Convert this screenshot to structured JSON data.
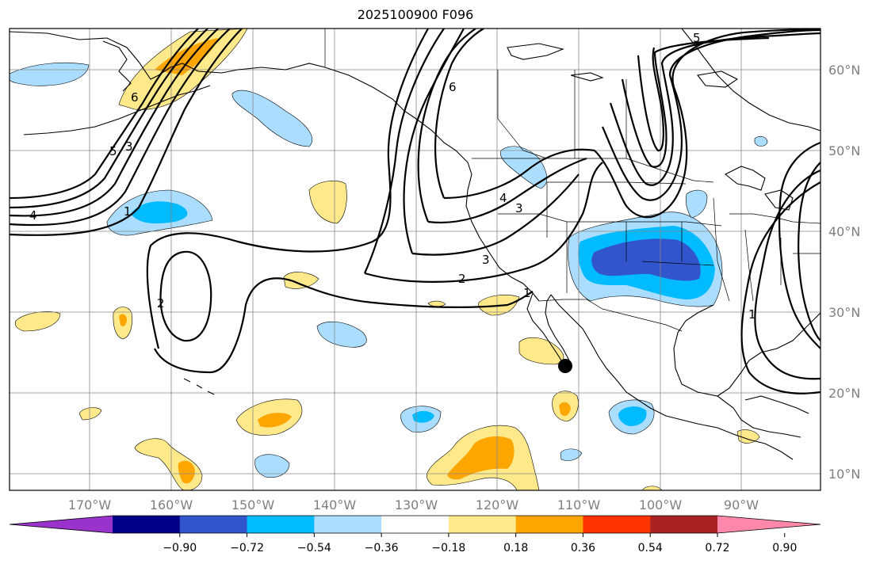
{
  "title": "2025100900 F096",
  "lat_labels": [
    "60°N",
    "50°N",
    "40°N",
    "30°N",
    "20°N",
    "10°N"
  ],
  "lon_labels": [
    "170°W",
    "160°W",
    "150°W",
    "140°W",
    "130°W",
    "120°W",
    "110°W",
    "100°W",
    "90°W"
  ],
  "colorbar": {
    "colors": [
      "#9933cc",
      "#000088",
      "#3355cc",
      "#00bbff",
      "#aaddff",
      "#ffffff",
      "#ffe98a",
      "#ffa500",
      "#ff3300",
      "#aa2222",
      "#ff88aa"
    ],
    "tick_labels": [
      "−0.90",
      "−0.72",
      "−0.54",
      "−0.36",
      "−0.18",
      "0.18",
      "0.36",
      "0.54",
      "0.72",
      "0.90"
    ]
  },
  "contour_labels": [
    "4",
    "5",
    "3",
    "6",
    "1",
    "2",
    "6",
    "4",
    "3",
    "3",
    "2",
    "1",
    "5",
    "1"
  ],
  "colors": {
    "contour": "#000000",
    "grid": "#888888",
    "coastline": "#000000",
    "marker": "#000000"
  }
}
